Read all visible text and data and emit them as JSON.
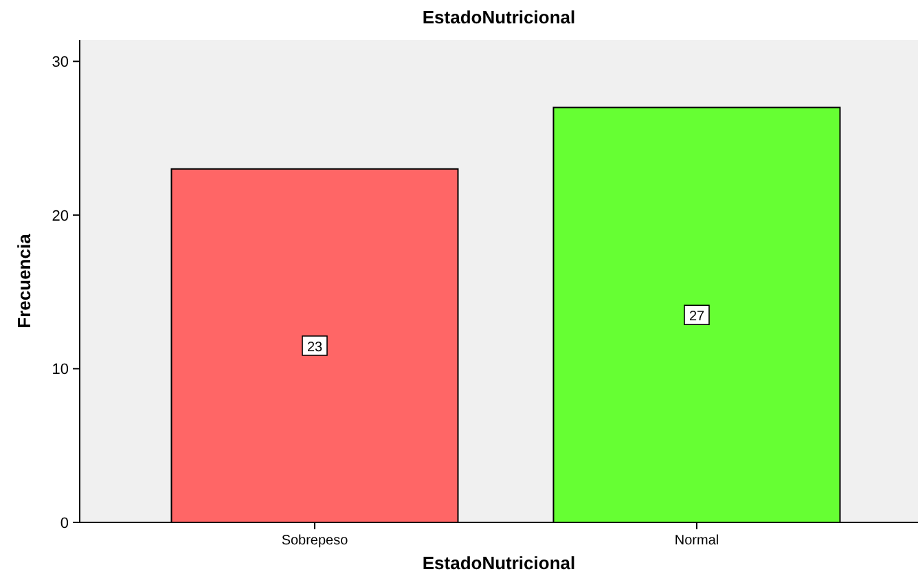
{
  "chart_data": {
    "type": "bar",
    "title": "EstadoNutricional",
    "xlabel": "EstadoNutricional",
    "ylabel": "Frecuencia",
    "categories": [
      "Sobrepeso",
      "Normal"
    ],
    "values": [
      23,
      27
    ],
    "colors": [
      "#ff6666",
      "#66ff33"
    ],
    "ylim": [
      0,
      31.4
    ],
    "yticks": [
      0,
      10,
      20,
      30
    ],
    "data_labels": true
  }
}
